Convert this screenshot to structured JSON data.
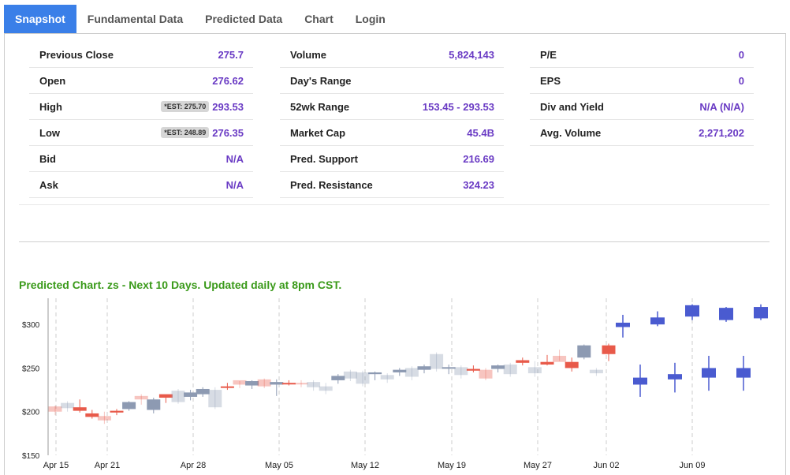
{
  "tabs": [
    {
      "label": "Snapshot",
      "active": true
    },
    {
      "label": "Fundamental Data",
      "active": false
    },
    {
      "label": "Predicted Data",
      "active": false
    },
    {
      "label": "Chart",
      "active": false
    },
    {
      "label": "Login",
      "active": false
    }
  ],
  "stats": {
    "col1": [
      {
        "label": "Previous Close",
        "value": "275.7"
      },
      {
        "label": "Open",
        "value": "276.62"
      },
      {
        "label": "High",
        "value": "293.53",
        "est": "*EST: 275.70"
      },
      {
        "label": "Low",
        "value": "276.35",
        "est": "*EST: 248.89"
      },
      {
        "label": "Bid",
        "value": "N/A"
      },
      {
        "label": "Ask",
        "value": "N/A"
      }
    ],
    "col2": [
      {
        "label": "Volume",
        "value": "5,824,143"
      },
      {
        "label": "Day's Range",
        "value": ""
      },
      {
        "label": "52wk Range",
        "value": "153.45 - 293.53"
      },
      {
        "label": "Market Cap",
        "value": "45.4B"
      },
      {
        "label": "Pred. Support",
        "value": "216.69"
      },
      {
        "label": "Pred. Resistance",
        "value": "324.23"
      }
    ],
    "col3": [
      {
        "label": "P/E",
        "value": "0"
      },
      {
        "label": "EPS",
        "value": "0"
      },
      {
        "label": "Div and Yield",
        "value": "N/A (N/A)"
      },
      {
        "label": "Avg. Volume",
        "value": "2,271,202"
      }
    ]
  },
  "chart_title": "Predicted Chart. zs - Next 10 Days. Updated daily at 8pm CST.",
  "colors": {
    "up_hist": "#8d9ab2",
    "down_hist": "#e85a4a",
    "pred": "#4a5bd0",
    "accent": "#3a7fe8",
    "title": "#3a9a1a",
    "value": "#6a3bc4"
  },
  "chart_data": {
    "type": "candlestick",
    "ylim": [
      150,
      330
    ],
    "yticks": [
      {
        "v": 150,
        "label": "$150"
      },
      {
        "v": 200,
        "label": "$200"
      },
      {
        "v": 250,
        "label": "$250"
      },
      {
        "v": 300,
        "label": "$300"
      }
    ],
    "xticks": [
      "Apr 15",
      "Apr 21",
      "Apr 28",
      "May 05",
      "May 12",
      "May 19",
      "May 27",
      "Jun 02",
      "Jun 09"
    ],
    "history": [
      {
        "o": 200,
        "h": 207,
        "l": 196,
        "c": 206,
        "d": "down",
        "faded": true
      },
      {
        "o": 204,
        "h": 212,
        "l": 200,
        "c": 210,
        "d": "up",
        "faded": true
      },
      {
        "o": 205,
        "h": 214,
        "l": 199,
        "c": 201,
        "d": "down",
        "faded": false
      },
      {
        "o": 198,
        "h": 202,
        "l": 192,
        "c": 194,
        "d": "down",
        "faded": false
      },
      {
        "o": 195,
        "h": 200,
        "l": 186,
        "c": 190,
        "d": "down",
        "faded": true
      },
      {
        "o": 199,
        "h": 203,
        "l": 196,
        "c": 201,
        "d": "down",
        "faded": false
      },
      {
        "o": 203,
        "h": 212,
        "l": 201,
        "c": 211,
        "d": "up",
        "faded": false
      },
      {
        "o": 214,
        "h": 220,
        "l": 208,
        "c": 218,
        "d": "down",
        "faded": true
      },
      {
        "o": 202,
        "h": 216,
        "l": 198,
        "c": 214,
        "d": "up",
        "faded": false
      },
      {
        "o": 216,
        "h": 219,
        "l": 210,
        "c": 220,
        "d": "down",
        "faded": false
      },
      {
        "o": 211,
        "h": 226,
        "l": 209,
        "c": 224,
        "d": "up",
        "faded": true
      },
      {
        "o": 217,
        "h": 225,
        "l": 213,
        "c": 222,
        "d": "up",
        "faded": false
      },
      {
        "o": 220,
        "h": 228,
        "l": 217,
        "c": 226,
        "d": "up",
        "faded": false
      },
      {
        "o": 205,
        "h": 228,
        "l": 203,
        "c": 225,
        "d": "up",
        "faded": true
      },
      {
        "o": 229,
        "h": 233,
        "l": 225,
        "c": 228,
        "d": "down",
        "faded": false
      },
      {
        "o": 231,
        "h": 235,
        "l": 227,
        "c": 236,
        "d": "down",
        "faded": true
      },
      {
        "o": 230,
        "h": 236,
        "l": 226,
        "c": 235,
        "d": "up",
        "faded": false
      },
      {
        "o": 237,
        "h": 238,
        "l": 227,
        "c": 229,
        "d": "down",
        "faded": true
      },
      {
        "o": 231,
        "h": 237,
        "l": 218,
        "c": 234,
        "d": "up",
        "faded": false
      },
      {
        "o": 233,
        "h": 236,
        "l": 230,
        "c": 232,
        "d": "down",
        "faded": false
      },
      {
        "o": 232,
        "h": 236,
        "l": 228,
        "c": 233,
        "d": "down",
        "faded": true
      },
      {
        "o": 228,
        "h": 236,
        "l": 224,
        "c": 234,
        "d": "up",
        "faded": true
      },
      {
        "o": 224,
        "h": 233,
        "l": 220,
        "c": 229,
        "d": "up",
        "faded": true
      },
      {
        "o": 236,
        "h": 243,
        "l": 232,
        "c": 241,
        "d": "up",
        "faded": false
      },
      {
        "o": 238,
        "h": 248,
        "l": 235,
        "c": 246,
        "d": "up",
        "faded": true
      },
      {
        "o": 232,
        "h": 247,
        "l": 229,
        "c": 245,
        "d": "up",
        "faded": true
      },
      {
        "o": 243,
        "h": 246,
        "l": 236,
        "c": 245,
        "d": "up",
        "faded": false
      },
      {
        "o": 237,
        "h": 244,
        "l": 233,
        "c": 242,
        "d": "up",
        "faded": true
      },
      {
        "o": 245,
        "h": 250,
        "l": 241,
        "c": 248,
        "d": "up",
        "faded": false
      },
      {
        "o": 240,
        "h": 252,
        "l": 236,
        "c": 250,
        "d": "up",
        "faded": true
      },
      {
        "o": 248,
        "h": 254,
        "l": 244,
        "c": 252,
        "d": "up",
        "faded": false
      },
      {
        "o": 249,
        "h": 268,
        "l": 246,
        "c": 266,
        "d": "up",
        "faded": true
      },
      {
        "o": 251,
        "h": 254,
        "l": 243,
        "c": 250,
        "d": "up",
        "faded": false
      },
      {
        "o": 242,
        "h": 253,
        "l": 238,
        "c": 251,
        "d": "up",
        "faded": true
      },
      {
        "o": 249,
        "h": 253,
        "l": 245,
        "c": 247,
        "d": "down",
        "faded": false
      },
      {
        "o": 248,
        "h": 250,
        "l": 236,
        "c": 238,
        "d": "down",
        "faded": true
      },
      {
        "o": 249,
        "h": 254,
        "l": 245,
        "c": 253,
        "d": "up",
        "faded": false
      },
      {
        "o": 243,
        "h": 256,
        "l": 240,
        "c": 254,
        "d": "up",
        "faded": true
      },
      {
        "o": 256,
        "h": 262,
        "l": 253,
        "c": 259,
        "d": "down",
        "faded": false
      },
      {
        "o": 244,
        "h": 258,
        "l": 240,
        "c": 251,
        "d": "up",
        "faded": true
      },
      {
        "o": 257,
        "h": 265,
        "l": 253,
        "c": 254,
        "d": "down",
        "faded": false
      },
      {
        "o": 264,
        "h": 271,
        "l": 258,
        "c": 257,
        "d": "down",
        "faded": true
      },
      {
        "o": 257,
        "h": 262,
        "l": 246,
        "c": 250,
        "d": "down",
        "faded": false
      },
      {
        "o": 262,
        "h": 277,
        "l": 260,
        "c": 276,
        "d": "up",
        "faded": false
      },
      {
        "o": 244,
        "h": 250,
        "l": 241,
        "c": 248,
        "d": "up",
        "faded": true
      },
      {
        "o": 276,
        "h": 278,
        "l": 258,
        "c": 266,
        "d": "down",
        "faded": false
      }
    ],
    "prediction_upper": [
      {
        "o": 297,
        "h": 311,
        "l": 285,
        "c": 302
      },
      {
        "o": 300,
        "h": 315,
        "l": 298,
        "c": 308
      },
      {
        "o": 309,
        "h": 323,
        "l": 305,
        "c": 322
      },
      {
        "o": 305,
        "h": 320,
        "l": 303,
        "c": 319
      },
      {
        "o": 307,
        "h": 323,
        "l": 305,
        "c": 320
      }
    ],
    "prediction_lower": [
      {
        "o": 231,
        "h": 254,
        "l": 217,
        "c": 239
      },
      {
        "o": 237,
        "h": 256,
        "l": 222,
        "c": 243
      },
      {
        "o": 239,
        "h": 264,
        "l": 224,
        "c": 250
      },
      {
        "o": 239,
        "h": 264,
        "l": 224,
        "c": 250
      }
    ]
  }
}
